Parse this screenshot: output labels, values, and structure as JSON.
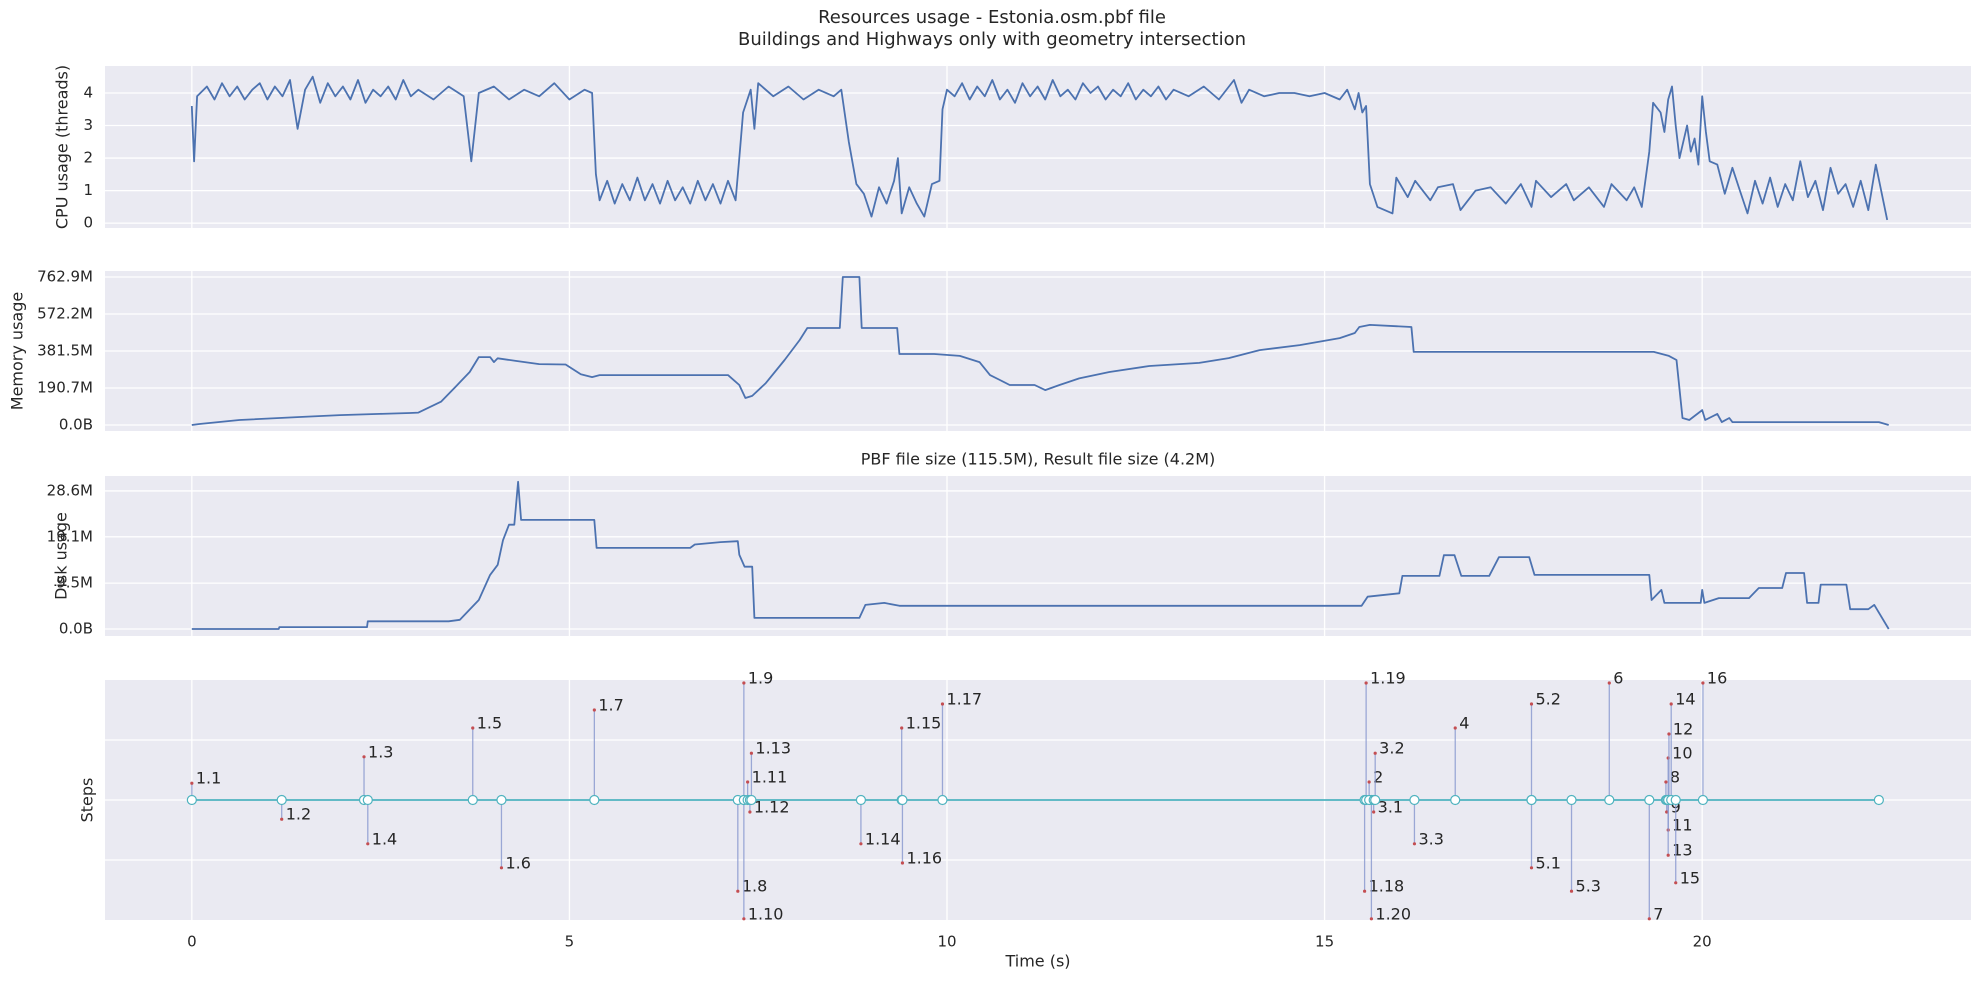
{
  "chart_data": [
    {
      "type": "line",
      "title": "Resources usage - Estonia.osm.pbf file",
      "subtitle": "Buildings and Highways only with geometry intersection",
      "ylabel": "CPU usage (threads)",
      "color": "#4c72b0",
      "grid": true,
      "ylim": [
        -0.15,
        4.83
      ],
      "yticks": [
        0,
        1,
        2,
        3,
        4
      ],
      "x": [
        0,
        0.03,
        0.07,
        0.2,
        0.3,
        0.4,
        0.5,
        0.6,
        0.7,
        0.8,
        0.9,
        1.0,
        1.1,
        1.2,
        1.3,
        1.4,
        1.5,
        1.6,
        1.7,
        1.8,
        1.9,
        2.0,
        2.1,
        2.2,
        2.3,
        2.4,
        2.5,
        2.6,
        2.7,
        2.8,
        2.9,
        3.0,
        3.2,
        3.4,
        3.6,
        3.7,
        3.8,
        4.0,
        4.2,
        4.4,
        4.6,
        4.8,
        5.0,
        5.2,
        5.3,
        5.35,
        5.4,
        5.5,
        5.6,
        5.7,
        5.8,
        5.9,
        6.0,
        6.1,
        6.2,
        6.3,
        6.4,
        6.5,
        6.6,
        6.7,
        6.8,
        6.9,
        7.0,
        7.1,
        7.2,
        7.25,
        7.3,
        7.4,
        7.45,
        7.5,
        7.7,
        7.9,
        8.1,
        8.3,
        8.5,
        8.6,
        8.7,
        8.8,
        8.9,
        9.0,
        9.1,
        9.2,
        9.3,
        9.35,
        9.4,
        9.5,
        9.6,
        9.7,
        9.8,
        9.9,
        9.94,
        10.0,
        10.1,
        10.2,
        10.3,
        10.4,
        10.5,
        10.6,
        10.7,
        10.8,
        10.9,
        11.0,
        11.1,
        11.2,
        11.3,
        11.4,
        11.5,
        11.6,
        11.7,
        11.8,
        11.9,
        12.0,
        12.1,
        12.2,
        12.3,
        12.4,
        12.5,
        12.6,
        12.7,
        12.8,
        12.9,
        13.0,
        13.2,
        13.4,
        13.6,
        13.8,
        13.9,
        14.0,
        14.2,
        14.4,
        14.6,
        14.8,
        15.0,
        15.2,
        15.3,
        15.4,
        15.45,
        15.5,
        15.55,
        15.6,
        15.7,
        15.9,
        15.95,
        16.1,
        16.2,
        16.4,
        16.5,
        16.7,
        16.8,
        17.0,
        17.2,
        17.4,
        17.6,
        17.74,
        17.8,
        18.0,
        18.2,
        18.3,
        18.5,
        18.7,
        18.8,
        19.0,
        19.1,
        19.2,
        19.3,
        19.35,
        19.45,
        19.5,
        19.55,
        19.6,
        19.65,
        19.7,
        19.8,
        19.85,
        19.9,
        19.95,
        20.0,
        20.05,
        20.1,
        20.2,
        20.3,
        20.4,
        20.5,
        20.6,
        20.7,
        20.8,
        20.9,
        21.0,
        21.1,
        21.2,
        21.3,
        21.4,
        21.5,
        21.6,
        21.7,
        21.8,
        21.9,
        22.0,
        22.1,
        22.2,
        22.3,
        22.45
      ],
      "values": [
        3.6,
        1.9,
        3.9,
        4.2,
        3.8,
        4.3,
        3.9,
        4.2,
        3.8,
        4.1,
        4.3,
        3.8,
        4.2,
        3.9,
        4.4,
        2.9,
        4.1,
        4.5,
        3.7,
        4.3,
        3.9,
        4.2,
        3.8,
        4.4,
        3.7,
        4.1,
        3.9,
        4.2,
        3.8,
        4.4,
        3.9,
        4.1,
        3.8,
        4.2,
        3.9,
        1.9,
        4.0,
        4.2,
        3.8,
        4.1,
        3.9,
        4.3,
        3.8,
        4.1,
        4.0,
        1.5,
        0.7,
        1.3,
        0.6,
        1.2,
        0.7,
        1.4,
        0.7,
        1.2,
        0.6,
        1.3,
        0.7,
        1.1,
        0.6,
        1.3,
        0.7,
        1.2,
        0.6,
        1.3,
        0.7,
        2.0,
        3.4,
        4.1,
        2.9,
        4.3,
        3.9,
        4.2,
        3.8,
        4.1,
        3.9,
        4.1,
        2.5,
        1.2,
        0.9,
        0.2,
        1.1,
        0.6,
        1.3,
        2.0,
        0.3,
        1.1,
        0.6,
        0.2,
        1.2,
        1.3,
        3.5,
        4.1,
        3.9,
        4.3,
        3.8,
        4.2,
        3.9,
        4.4,
        3.8,
        4.1,
        3.7,
        4.3,
        3.9,
        4.2,
        3.8,
        4.4,
        3.9,
        4.1,
        3.8,
        4.3,
        4.0,
        4.2,
        3.8,
        4.1,
        3.9,
        4.3,
        3.8,
        4.1,
        3.9,
        4.2,
        3.8,
        4.1,
        3.9,
        4.2,
        3.8,
        4.4,
        3.7,
        4.1,
        3.9,
        4.0,
        4.0,
        3.9,
        4.0,
        3.8,
        4.1,
        3.5,
        4.0,
        3.4,
        3.6,
        1.2,
        0.5,
        0.3,
        1.4,
        0.8,
        1.3,
        0.7,
        1.1,
        1.2,
        0.4,
        1.0,
        1.1,
        0.6,
        1.2,
        0.5,
        1.3,
        0.8,
        1.2,
        0.7,
        1.1,
        0.5,
        1.2,
        0.7,
        1.1,
        0.5,
        2.2,
        3.7,
        3.4,
        2.8,
        3.8,
        4.2,
        3.0,
        2.0,
        3.0,
        2.2,
        2.6,
        1.8,
        3.9,
        2.8,
        1.9,
        1.8,
        0.9,
        1.7,
        1.0,
        0.3,
        1.3,
        0.6,
        1.4,
        0.5,
        1.2,
        0.7,
        1.9,
        0.8,
        1.3,
        0.4,
        1.7,
        0.9,
        1.2,
        0.5,
        1.3,
        0.4,
        1.8,
        0.1
      ]
    },
    {
      "type": "line",
      "ylabel": "Memory usage",
      "color": "#4c72b0",
      "grid": true,
      "ylim": [
        -30.9,
        793.7
      ],
      "yticks": [
        {
          "value": 0,
          "label": "0.0B"
        },
        {
          "value": 190.7,
          "label": "190.7M"
        },
        {
          "value": 381.5,
          "label": "381.5M"
        },
        {
          "value": 572.2,
          "label": "572.2M"
        },
        {
          "value": 762.9,
          "label": "762.9M"
        }
      ],
      "x": [
        0,
        0.1,
        0.63,
        1.43,
        1.96,
        2.49,
        2.89,
        3.0,
        3.3,
        3.5,
        3.68,
        3.8,
        3.95,
        4.0,
        4.05,
        4.3,
        4.6,
        4.95,
        5.15,
        5.3,
        5.4,
        7.1,
        7.25,
        7.33,
        7.42,
        7.6,
        7.85,
        8.05,
        8.15,
        8.58,
        8.62,
        8.84,
        8.87,
        9.34,
        9.37,
        9.83,
        10.17,
        10.43,
        10.57,
        10.7,
        10.83,
        11.16,
        11.3,
        11.49,
        11.75,
        12.15,
        12.68,
        13.34,
        13.73,
        14.14,
        14.67,
        15.2,
        15.4,
        15.46,
        15.6,
        16.15,
        16.18,
        19.36,
        19.56,
        19.66,
        19.74,
        19.83,
        20.0,
        20.04,
        20.2,
        20.26,
        20.36,
        20.4,
        22.34,
        22.47
      ],
      "values": [
        0,
        5,
        26,
        41,
        51,
        57,
        62,
        64,
        120,
        200,
        273,
        350,
        350,
        324,
        344,
        330,
        314,
        312,
        262,
        247,
        257,
        257,
        206,
        139,
        150,
        216,
        335,
        438,
        500,
        500,
        763,
        763,
        500,
        500,
        366,
        366,
        356,
        324,
        257,
        232,
        206,
        206,
        180,
        206,
        240,
        273,
        304,
        320,
        345,
        386,
        412,
        448,
        474,
        505,
        516,
        505,
        377,
        377,
        356,
        335,
        36,
        26,
        77,
        26,
        57,
        15,
        36,
        15,
        15,
        0
      ]
    },
    {
      "type": "line",
      "title": "PBF file size (115.5M), Result file size (4.2M)",
      "ylabel": "Disk usage",
      "color": "#4c72b0",
      "grid": true,
      "ylim": [
        -1.45,
        31.7
      ],
      "yticks": [
        {
          "value": 0,
          "label": "0.0B"
        },
        {
          "value": 9.5,
          "label": "9.5M"
        },
        {
          "value": 19.1,
          "label": "19.1M"
        },
        {
          "value": 28.6,
          "label": "28.6M"
        }
      ],
      "x": [
        0,
        1.15,
        1.16,
        2.32,
        2.33,
        3.4,
        3.55,
        3.8,
        3.95,
        4.05,
        4.12,
        4.2,
        4.27,
        4.32,
        4.36,
        5.33,
        5.36,
        6.6,
        6.66,
        7.0,
        7.23,
        7.25,
        7.32,
        7.42,
        7.45,
        8.84,
        8.92,
        9.17,
        9.37,
        15.49,
        15.57,
        15.99,
        16.03,
        16.52,
        16.58,
        16.72,
        16.81,
        17.18,
        17.31,
        17.71,
        17.78,
        19.3,
        19.33,
        19.46,
        19.5,
        19.98,
        20.0,
        20.03,
        20.22,
        20.62,
        20.75,
        21.06,
        21.11,
        21.35,
        21.39,
        21.54,
        21.57,
        21.91,
        21.96,
        22.2,
        22.28,
        22.47
      ],
      "values": [
        0,
        0,
        0.4,
        0.4,
        1.6,
        1.6,
        1.9,
        6.0,
        11.2,
        13.3,
        18.4,
        21.6,
        21.6,
        30.5,
        22.6,
        22.6,
        16.8,
        16.8,
        17.5,
        18.0,
        18.2,
        15.4,
        12.9,
        12.9,
        2.3,
        2.3,
        5.0,
        5.4,
        4.8,
        4.8,
        6.7,
        7.4,
        11,
        11,
        15.3,
        15.3,
        11,
        11,
        14.9,
        14.9,
        11.2,
        11.2,
        6,
        8.1,
        5.4,
        5.4,
        8.1,
        5.4,
        6.4,
        6.4,
        8.5,
        8.5,
        11.6,
        11.6,
        5.4,
        5.4,
        9.2,
        9.2,
        4.1,
        4.1,
        5.0,
        0
      ]
    },
    {
      "type": "steps",
      "ylabel": "Steps",
      "xlabel": "Time (s)",
      "grid": true,
      "xlim": [
        -1.15,
        23.56
      ],
      "xticks": [
        0,
        5,
        10,
        15,
        20
      ],
      "ylim": [
        -2,
        2
      ],
      "yticks": [
        -1,
        0,
        1
      ],
      "line_color": "#4fb3bf",
      "stem_color": "#8797cf",
      "tip_color": "#c44e52",
      "labels": [
        "1.1",
        "1.2",
        "1.3",
        "1.4",
        "1.5",
        "1.6",
        "1.7",
        "1.8",
        "1.9",
        "1.10",
        "1.11",
        "1.12",
        "1.13",
        "1.14",
        "1.15",
        "1.16",
        "1.17",
        "1.18",
        "1.19",
        "1.20",
        "2",
        "3.1",
        "3.2",
        "3.3",
        "4",
        "5.1",
        "5.2",
        "5.3",
        "6",
        "7",
        "8",
        "9",
        "10",
        "11",
        "12",
        "13",
        "14",
        "15",
        "16",
        null
      ],
      "x": [
        0,
        1.19,
        2.28,
        2.33,
        3.72,
        4.1,
        5.33,
        7.23,
        7.31,
        7.31,
        7.36,
        7.39,
        7.41,
        8.86,
        9.4,
        9.41,
        9.94,
        15.53,
        15.55,
        15.62,
        15.59,
        15.65,
        15.67,
        16.19,
        16.73,
        17.74,
        17.74,
        18.27,
        18.77,
        19.3,
        19.52,
        19.53,
        19.55,
        19.55,
        19.56,
        19.55,
        19.59,
        19.65,
        20.01,
        22.34
      ],
      "y": [
        0.28,
        -0.32,
        0.72,
        -0.73,
        1.2,
        -1.13,
        1.5,
        -1.52,
        1.95,
        -1.98,
        0.3,
        -0.2,
        0.78,
        -0.73,
        1.2,
        -1.05,
        1.6,
        -1.52,
        1.95,
        -1.98,
        0.3,
        -0.2,
        0.78,
        -0.73,
        1.2,
        -1.13,
        1.6,
        -1.52,
        1.95,
        -1.98,
        0.3,
        -0.2,
        0.7,
        -0.5,
        1.1,
        -0.92,
        1.6,
        -1.38,
        1.95,
        0
      ]
    }
  ]
}
